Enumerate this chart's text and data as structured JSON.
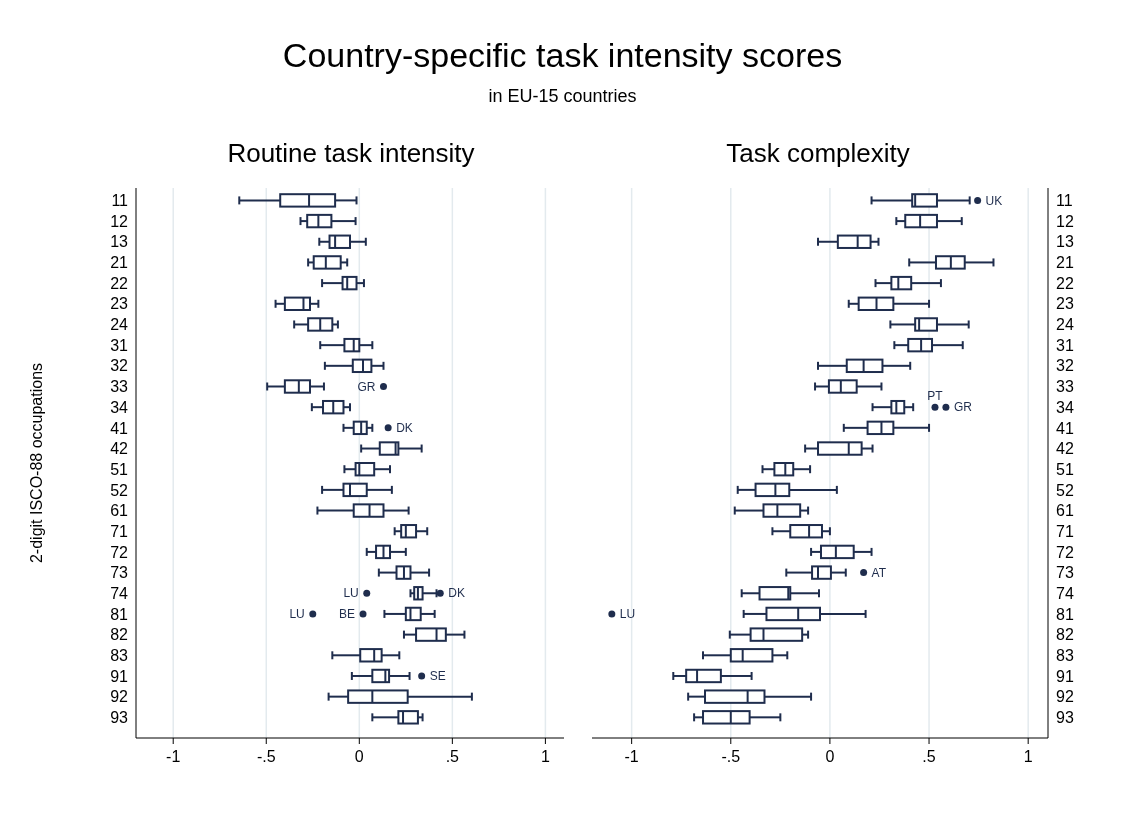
{
  "chart_data": [
    {
      "type": "box",
      "orientation": "horizontal",
      "title": "Routine task intensity",
      "ylabel": "2-digit ISCO-88 occupations",
      "color": "#1f2d4d",
      "grid": "x",
      "marker": "circle",
      "xlim": [
        -1.2,
        1.1
      ],
      "xticks": [
        {
          "value": -1,
          "label": "-1"
        },
        {
          "value": -0.5,
          "label": "-.5"
        },
        {
          "value": 0,
          "label": "0"
        },
        {
          "value": 0.5,
          "label": ".5"
        },
        {
          "value": 1,
          "label": "1"
        }
      ],
      "categories": [
        "11",
        "12",
        "13",
        "21",
        "22",
        "23",
        "24",
        "31",
        "32",
        "33",
        "34",
        "41",
        "42",
        "51",
        "52",
        "61",
        "71",
        "72",
        "73",
        "74",
        "81",
        "82",
        "83",
        "91",
        "92",
        "93"
      ],
      "boxes": [
        {
          "low": -0.645,
          "q1": -0.425,
          "median": -0.27,
          "q3": -0.13,
          "high": -0.015
        },
        {
          "low": -0.316,
          "q1": -0.28,
          "median": -0.22,
          "q3": -0.15,
          "high": -0.02
        },
        {
          "low": -0.215,
          "q1": -0.16,
          "median": -0.13,
          "q3": -0.05,
          "high": 0.035
        },
        {
          "low": -0.275,
          "q1": -0.245,
          "median": -0.18,
          "q3": -0.1,
          "high": -0.065
        },
        {
          "low": -0.2,
          "q1": -0.09,
          "median": -0.065,
          "q3": -0.015,
          "high": 0.025
        },
        {
          "low": -0.45,
          "q1": -0.4,
          "median": -0.3,
          "q3": -0.265,
          "high": -0.22
        },
        {
          "low": -0.35,
          "q1": -0.275,
          "median": -0.21,
          "q3": -0.145,
          "high": -0.115
        },
        {
          "low": -0.21,
          "q1": -0.08,
          "median": -0.03,
          "q3": 0,
          "high": 0.07
        },
        {
          "low": -0.185,
          "q1": -0.035,
          "median": 0.02,
          "q3": 0.065,
          "high": 0.13
        },
        {
          "low": -0.495,
          "q1": -0.4,
          "median": -0.325,
          "q3": -0.265,
          "high": -0.19
        },
        {
          "low": -0.255,
          "q1": -0.195,
          "median": -0.14,
          "q3": -0.085,
          "high": -0.05
        },
        {
          "low": -0.085,
          "q1": -0.03,
          "median": 0.01,
          "q3": 0.04,
          "high": 0.07
        },
        {
          "low": 0.01,
          "q1": 0.11,
          "median": 0.195,
          "q3": 0.21,
          "high": 0.335
        },
        {
          "low": -0.08,
          "q1": -0.02,
          "median": 0,
          "q3": 0.08,
          "high": 0.165
        },
        {
          "low": -0.2,
          "q1": -0.085,
          "median": -0.05,
          "q3": 0.04,
          "high": 0.175
        },
        {
          "low": -0.225,
          "q1": -0.03,
          "median": 0.055,
          "q3": 0.13,
          "high": 0.265
        },
        {
          "low": 0.19,
          "q1": 0.225,
          "median": 0.25,
          "q3": 0.305,
          "high": 0.365
        },
        {
          "low": 0.04,
          "q1": 0.09,
          "median": 0.13,
          "q3": 0.165,
          "high": 0.25
        },
        {
          "low": 0.105,
          "q1": 0.2,
          "median": 0.24,
          "q3": 0.275,
          "high": 0.375
        },
        {
          "low": 0.275,
          "q1": 0.295,
          "median": 0.315,
          "q3": 0.34,
          "high": 0.415
        },
        {
          "low": 0.135,
          "q1": 0.25,
          "median": 0.275,
          "q3": 0.33,
          "high": 0.405
        },
        {
          "low": 0.24,
          "q1": 0.305,
          "median": 0.415,
          "q3": 0.465,
          "high": 0.565
        },
        {
          "low": -0.145,
          "q1": 0.005,
          "median": 0.08,
          "q3": 0.12,
          "high": 0.215
        },
        {
          "low": -0.04,
          "q1": 0.07,
          "median": 0.14,
          "q3": 0.16,
          "high": 0.27
        },
        {
          "low": -0.165,
          "q1": -0.06,
          "median": 0.07,
          "q3": 0.26,
          "high": 0.605
        },
        {
          "low": 0.07,
          "q1": 0.21,
          "median": 0.235,
          "q3": 0.315,
          "high": 0.34
        }
      ],
      "series": [
        {
          "type": "scatter",
          "color": "#1f2d4d",
          "x": [
            "33",
            "41",
            "74",
            "74",
            "81",
            "81",
            "91"
          ],
          "values": [
            0.13,
            0.155,
            0.04,
            0.435,
            -0.25,
            0.02,
            0.335
          ],
          "value_labels": [
            "GR",
            "DK",
            "LU",
            "DK",
            "LU",
            "BE",
            "SE"
          ]
        }
      ],
      "annotations": [
        "Country-specific task intensity scores",
        "in EU-15 countries"
      ]
    },
    {
      "type": "box",
      "orientation": "horizontal",
      "title": "Task complexity",
      "color": "#1f2d4d",
      "grid": "x",
      "marker": "circle",
      "xlim": [
        -1.2,
        1.1
      ],
      "xticks": [
        {
          "value": -1,
          "label": "-1"
        },
        {
          "value": -0.5,
          "label": "-.5"
        },
        {
          "value": 0,
          "label": "0"
        },
        {
          "value": 0.5,
          "label": ".5"
        },
        {
          "value": 1,
          "label": "1"
        }
      ],
      "categories": [
        "11",
        "12",
        "13",
        "21",
        "22",
        "23",
        "24",
        "31",
        "32",
        "33",
        "34",
        "41",
        "42",
        "51",
        "52",
        "61",
        "71",
        "72",
        "73",
        "74",
        "81",
        "82",
        "83",
        "91",
        "92",
        "93"
      ],
      "boxes": [
        {
          "low": 0.21,
          "q1": 0.415,
          "median": 0.43,
          "q3": 0.54,
          "high": 0.705
        },
        {
          "low": 0.335,
          "q1": 0.38,
          "median": 0.455,
          "q3": 0.54,
          "high": 0.665
        },
        {
          "low": -0.06,
          "q1": 0.04,
          "median": 0.14,
          "q3": 0.205,
          "high": 0.245
        },
        {
          "low": 0.4,
          "q1": 0.535,
          "median": 0.61,
          "q3": 0.68,
          "high": 0.825
        },
        {
          "low": 0.23,
          "q1": 0.31,
          "median": 0.345,
          "q3": 0.41,
          "high": 0.56
        },
        {
          "low": 0.095,
          "q1": 0.145,
          "median": 0.235,
          "q3": 0.32,
          "high": 0.5
        },
        {
          "low": 0.305,
          "q1": 0.43,
          "median": 0.45,
          "q3": 0.54,
          "high": 0.7
        },
        {
          "low": 0.325,
          "q1": 0.395,
          "median": 0.46,
          "q3": 0.515,
          "high": 0.67
        },
        {
          "low": -0.06,
          "q1": 0.085,
          "median": 0.17,
          "q3": 0.265,
          "high": 0.405
        },
        {
          "low": -0.075,
          "q1": -0.005,
          "median": 0.055,
          "q3": 0.135,
          "high": 0.26
        },
        {
          "low": 0.215,
          "q1": 0.31,
          "median": 0.335,
          "q3": 0.375,
          "high": 0.42
        },
        {
          "low": 0.07,
          "q1": 0.19,
          "median": 0.26,
          "q3": 0.32,
          "high": 0.5
        },
        {
          "low": -0.125,
          "q1": -0.06,
          "median": 0.095,
          "q3": 0.16,
          "high": 0.215
        },
        {
          "low": -0.34,
          "q1": -0.28,
          "median": -0.225,
          "q3": -0.185,
          "high": -0.1
        },
        {
          "low": -0.465,
          "q1": -0.375,
          "median": -0.275,
          "q3": -0.205,
          "high": 0.035
        },
        {
          "low": -0.48,
          "q1": -0.335,
          "median": -0.265,
          "q3": -0.15,
          "high": -0.11
        },
        {
          "low": -0.29,
          "q1": -0.2,
          "median": -0.105,
          "q3": -0.04,
          "high": 0
        },
        {
          "low": -0.095,
          "q1": -0.045,
          "median": 0.03,
          "q3": 0.12,
          "high": 0.21
        },
        {
          "low": -0.22,
          "q1": -0.09,
          "median": -0.06,
          "q3": 0.005,
          "high": 0.08
        },
        {
          "low": -0.445,
          "q1": -0.355,
          "median": -0.21,
          "q3": -0.2,
          "high": -0.055
        },
        {
          "low": -0.435,
          "q1": -0.32,
          "median": -0.16,
          "q3": -0.05,
          "high": 0.18
        },
        {
          "low": -0.505,
          "q1": -0.4,
          "median": -0.335,
          "q3": -0.14,
          "high": -0.11
        },
        {
          "low": -0.64,
          "q1": -0.5,
          "median": -0.44,
          "q3": -0.29,
          "high": -0.215
        },
        {
          "low": -0.79,
          "q1": -0.725,
          "median": -0.67,
          "q3": -0.55,
          "high": -0.395
        },
        {
          "low": -0.715,
          "q1": -0.63,
          "median": -0.415,
          "q3": -0.33,
          "high": -0.095
        },
        {
          "low": -0.685,
          "q1": -0.64,
          "median": -0.5,
          "q3": -0.405,
          "high": -0.25
        }
      ],
      "series": [
        {
          "type": "scatter",
          "color": "#1f2d4d",
          "x": [
            "11",
            "34",
            "34",
            "73",
            "81"
          ],
          "values": [
            0.745,
            0.53,
            0.585,
            0.17,
            -1.1
          ],
          "value_labels": [
            "UK",
            "PT",
            "GR",
            "AT",
            "LU"
          ]
        }
      ]
    }
  ]
}
